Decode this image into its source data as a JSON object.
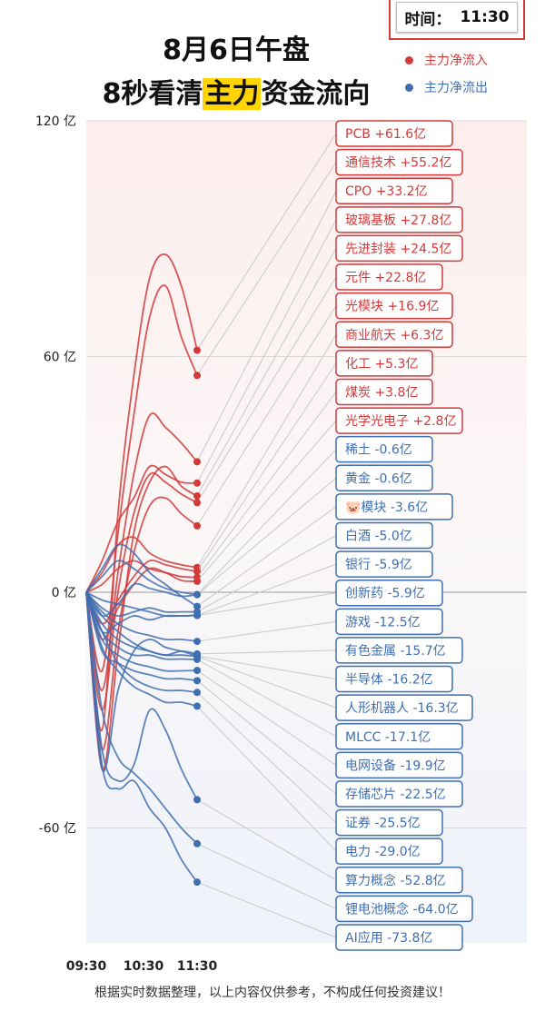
{
  "time_box": {
    "label": "时间：",
    "value": "11:30"
  },
  "title_line1": "8月6日午盘",
  "title_line2_pre": "8秒看清",
  "title_line2_hl": "主力",
  "title_line2_post": "资金流向",
  "legend": [
    {
      "label": "主力净流入",
      "color": "#d23a3a"
    },
    {
      "label": "主力净流出",
      "color": "#3f6fb1"
    }
  ],
  "footer": "根据实时数据整理，以上内容仅供参考，不构成任何投资建议！",
  "chart_data": {
    "type": "line",
    "ylim": [
      -80,
      120
    ],
    "y_ticks": [
      120,
      60,
      0,
      -60
    ],
    "y_tick_labels": [
      "120 亿",
      "60 亿",
      "0 亿",
      "-60 亿"
    ],
    "x_ticks": [
      "09:30",
      "10:30",
      "11:30"
    ],
    "inflow_color": "#d23a3a",
    "outflow_color": "#3f6fb1",
    "series": [
      {
        "name": "PCB",
        "label": "PCB +61.6亿",
        "value": 61.6,
        "shape": [
          0,
          -35,
          20,
          55,
          80,
          86,
          78,
          61.6
        ]
      },
      {
        "name": "通信技术",
        "label": "通信技术 +55.2亿",
        "value": 55.2,
        "shape": [
          0,
          -20,
          15,
          45,
          70,
          78,
          65,
          55.2
        ]
      },
      {
        "name": "CPO",
        "label": "CPO +33.2亿",
        "value": 33.2,
        "shape": [
          0,
          -25,
          5,
          30,
          45,
          42,
          38,
          33.2
        ]
      },
      {
        "name": "玻璃基板",
        "label": "玻璃基板 +27.8亿",
        "value": 27.8,
        "shape": [
          0,
          8,
          18,
          24,
          32,
          30,
          28,
          27.8
        ]
      },
      {
        "name": "先进封装",
        "label": "先进封装 +24.5亿",
        "value": 24.5,
        "shape": [
          0,
          -45,
          -15,
          15,
          28,
          32,
          27,
          24.5
        ]
      },
      {
        "name": "元件",
        "label": "元件 +22.8亿",
        "value": 22.8,
        "shape": [
          0,
          -30,
          0,
          20,
          30,
          28,
          25,
          22.8
        ]
      },
      {
        "name": "光模块",
        "label": "光模块 +16.9亿",
        "value": 16.9,
        "shape": [
          0,
          -40,
          -10,
          10,
          22,
          24,
          20,
          16.9
        ]
      },
      {
        "name": "商业航天",
        "label": "商业航天 +6.3亿",
        "value": 6.3,
        "shape": [
          0,
          5,
          12,
          14,
          10,
          8,
          7,
          6.3
        ]
      },
      {
        "name": "化工",
        "label": "化工 +5.3亿",
        "value": 5.3,
        "shape": [
          0,
          -8,
          -2,
          4,
          8,
          7,
          6,
          5.3
        ]
      },
      {
        "name": "煤炭",
        "label": "煤炭 +3.8亿",
        "value": 3.8,
        "shape": [
          0,
          2,
          6,
          8,
          6,
          5,
          4,
          3.8
        ]
      },
      {
        "name": "光学光电子",
        "label": "光学光电子 +2.8亿",
        "value": 2.8,
        "shape": [
          0,
          -12,
          -4,
          2,
          6,
          5,
          3,
          2.8
        ]
      },
      {
        "name": "稀土",
        "label": "稀土 -0.6亿",
        "value": -0.6,
        "shape": [
          0,
          4,
          8,
          6,
          3,
          1,
          0,
          -0.6
        ]
      },
      {
        "name": "黄金",
        "label": "黄金 -0.6亿",
        "value": -0.6,
        "shape": [
          0,
          -6,
          -3,
          2,
          1,
          0,
          -1,
          -0.6
        ]
      },
      {
        "name": "模块",
        "label": "🐷模块 -3.6亿",
        "value": -3.6,
        "shape": [
          0,
          6,
          12,
          10,
          5,
          2,
          -1,
          -3.6
        ]
      },
      {
        "name": "白酒",
        "label": "白酒 -5.0亿",
        "value": -5.0,
        "shape": [
          0,
          -4,
          -6,
          -5,
          -4,
          -5,
          -5,
          -5.0
        ]
      },
      {
        "name": "银行",
        "label": "银行 -5.9亿",
        "value": -5.9,
        "shape": [
          0,
          -2,
          -3,
          -4,
          -5,
          -6,
          -6,
          -5.9
        ]
      },
      {
        "name": "创新药",
        "label": "创新药 -5.9亿",
        "value": -5.9,
        "shape": [
          0,
          -10,
          -8,
          -6,
          -7,
          -6,
          -6,
          -5.9
        ]
      },
      {
        "name": "游戏",
        "label": "游戏 -12.5亿",
        "value": -12.5,
        "shape": [
          0,
          -5,
          -8,
          -10,
          -11,
          -12,
          -12,
          -12.5
        ]
      },
      {
        "name": "有色金属",
        "label": "有色金属 -15.7亿",
        "value": -15.7,
        "shape": [
          0,
          -8,
          -12,
          -14,
          -15,
          -16,
          -15,
          -15.7
        ]
      },
      {
        "name": "半导体",
        "label": "半导体 -16.2亿",
        "value": -16.2,
        "shape": [
          0,
          -45,
          -25,
          -15,
          -12,
          -14,
          -15,
          -16.2
        ]
      },
      {
        "name": "人形机器人",
        "label": "人形机器人 -16.3亿",
        "value": -16.3,
        "shape": [
          0,
          -6,
          -10,
          -13,
          -15,
          -16,
          -16,
          -16.3
        ]
      },
      {
        "name": "MLCC",
        "label": "MLCC -17.1亿",
        "value": -17.1,
        "shape": [
          0,
          -10,
          -14,
          -16,
          -16,
          -17,
          -17,
          -17.1
        ]
      },
      {
        "name": "电网设备",
        "label": "电网设备 -19.9亿",
        "value": -19.9,
        "shape": [
          0,
          -12,
          -16,
          -18,
          -19,
          -20,
          -20,
          -19.9
        ]
      },
      {
        "name": "存储芯片",
        "label": "存储芯片 -22.5亿",
        "value": -22.5,
        "shape": [
          0,
          -15,
          -18,
          -20,
          -21,
          -22,
          -22,
          -22.5
        ]
      },
      {
        "name": "证券",
        "label": "证券 -25.5亿",
        "value": -25.5,
        "shape": [
          0,
          -10,
          -18,
          -22,
          -24,
          -25,
          -25,
          -25.5
        ]
      },
      {
        "name": "电力",
        "label": "电力 -29.0亿",
        "value": -29.0,
        "shape": [
          0,
          -14,
          -20,
          -24,
          -26,
          -28,
          -28,
          -29.0
        ]
      },
      {
        "name": "算力概念",
        "label": "算力概念 -52.8亿",
        "value": -52.8,
        "shape": [
          0,
          -40,
          -48,
          -44,
          -30,
          -35,
          -45,
          -52.8
        ]
      },
      {
        "name": "锂电池概念",
        "label": "锂电池概念 -64.0亿",
        "value": -64.0,
        "shape": [
          0,
          -30,
          -42,
          -46,
          -50,
          -55,
          -60,
          -64.0
        ]
      },
      {
        "name": "AI应用",
        "label": "AI应用 -73.8亿",
        "value": -73.8,
        "shape": [
          0,
          -44,
          -50,
          -48,
          -55,
          -60,
          -68,
          -73.8
        ]
      }
    ]
  }
}
